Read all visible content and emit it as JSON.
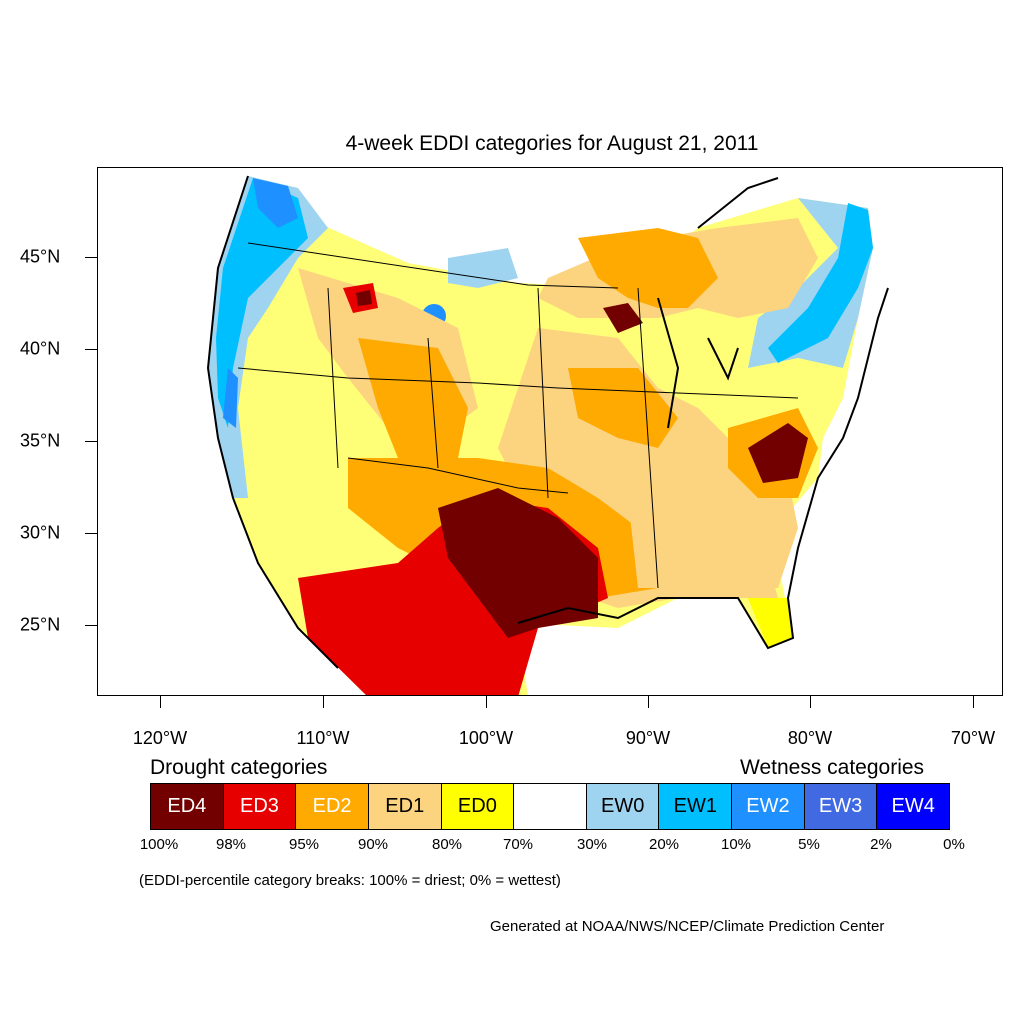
{
  "title": "4-week EDDI categories for August 21, 2011",
  "map": {
    "lat_labels": [
      "45°N",
      "40°N",
      "35°N",
      "30°N",
      "25°N"
    ],
    "lon_labels": [
      "120°W",
      "110°W",
      "100°W",
      "90°W",
      "80°W",
      "70°W"
    ]
  },
  "legend": {
    "drought_heading": "Drought categories",
    "wetness_heading": "Wetness categories",
    "categories": [
      {
        "label": "ED4",
        "color": "#730000",
        "text_color": "#ffffff"
      },
      {
        "label": "ED3",
        "color": "#e60000",
        "text_color": "#ffffff"
      },
      {
        "label": "ED2",
        "color": "#ffaa00",
        "text_color": "#ffffff"
      },
      {
        "label": "ED1",
        "color": "#fcd37f",
        "text_color": "#000000"
      },
      {
        "label": "ED0",
        "color": "#ffff00",
        "text_color": "#000000"
      },
      {
        "label": "",
        "color": "#ffffff",
        "text_color": "#000000"
      },
      {
        "label": "EW0",
        "color": "#9fd4f0",
        "text_color": "#000000"
      },
      {
        "label": "EW1",
        "color": "#00bfff",
        "text_color": "#000000"
      },
      {
        "label": "EW2",
        "color": "#1e90ff",
        "text_color": "#ffffff"
      },
      {
        "label": "EW3",
        "color": "#4169e1",
        "text_color": "#ffffff"
      },
      {
        "label": "EW4",
        "color": "#0000ff",
        "text_color": "#ffffff"
      }
    ],
    "percentiles": [
      "100%",
      "98%",
      "95%",
      "90%",
      "80%",
      "70%",
      "30%",
      "20%",
      "10%",
      "5%",
      "2%",
      "0%"
    ],
    "note": "(EDDI-percentile category breaks: 100% = driest; 0% = wettest)"
  },
  "credit": "Generated at NOAA/NWS/NCEP/Climate Prediction Center"
}
